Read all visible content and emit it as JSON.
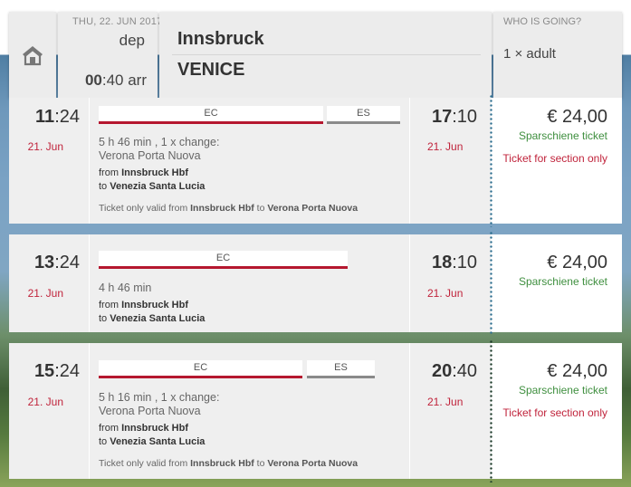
{
  "header": {
    "date": "THU, 22. JUN 2017",
    "dep_label": "dep",
    "arr_time_bold": "00",
    "arr_time_rest": ":40 arr",
    "from_city": "Innsbruck",
    "to_city": "VENICE",
    "who_label": "WHO IS GOING?",
    "who_value": "1 × adult",
    "home_icon": "home-icon"
  },
  "connections": [
    {
      "dep_hour": "11",
      "dep_min": ":24",
      "dep_day": "21. Jun",
      "arr_hour": "17",
      "arr_min": ":10",
      "arr_day": "21. Jun",
      "trains": [
        {
          "label": "EC"
        },
        {
          "label": "ES"
        }
      ],
      "duration": "5 h 46 min , 1 x change:",
      "via": "Verona Porta Nuova",
      "from_prefix": "from ",
      "from_station": "Innsbruck Hbf",
      "to_prefix": "to ",
      "to_station": "Venezia Santa Lucia",
      "valid_prefix": "Ticket only valid from ",
      "valid_from": "Innsbruck Hbf",
      "valid_mid": " to ",
      "valid_to": "Verona Porta Nuova",
      "price": "€ 24,00",
      "fare": "Sparschiene ticket",
      "note": "Ticket for section only"
    },
    {
      "dep_hour": "13",
      "dep_min": ":24",
      "dep_day": "21. Jun",
      "arr_hour": "18",
      "arr_min": ":10",
      "arr_day": "21. Jun",
      "trains": [
        {
          "label": "EC"
        }
      ],
      "duration": "4 h 46 min",
      "from_prefix": "from ",
      "from_station": "Innsbruck Hbf",
      "to_prefix": "to ",
      "to_station": "Venezia Santa Lucia",
      "price": "€ 24,00",
      "fare": "Sparschiene ticket"
    },
    {
      "dep_hour": "15",
      "dep_min": ":24",
      "dep_day": "21. Jun",
      "arr_hour": "20",
      "arr_min": ":40",
      "arr_day": "21. Jun",
      "trains": [
        {
          "label": "EC"
        },
        {
          "label": "ES"
        }
      ],
      "duration": "5 h 16 min , 1 x change:",
      "via": "Verona Porta Nuova",
      "from_prefix": "from ",
      "from_station": "Innsbruck Hbf",
      "to_prefix": "to ",
      "to_station": "Venezia Santa Lucia",
      "valid_prefix": "Ticket only valid from ",
      "valid_from": "Innsbruck Hbf",
      "valid_mid": " to ",
      "valid_to": "Verona Porta Nuova",
      "price": "€ 24,00",
      "fare": "Sparschiene ticket",
      "note": "Ticket for section only"
    }
  ],
  "colors": {
    "accent_red": "#b5172f",
    "day_red": "#c0233b",
    "fare_green": "#3f8f3f",
    "dots_blue": "#2d6e8f"
  }
}
